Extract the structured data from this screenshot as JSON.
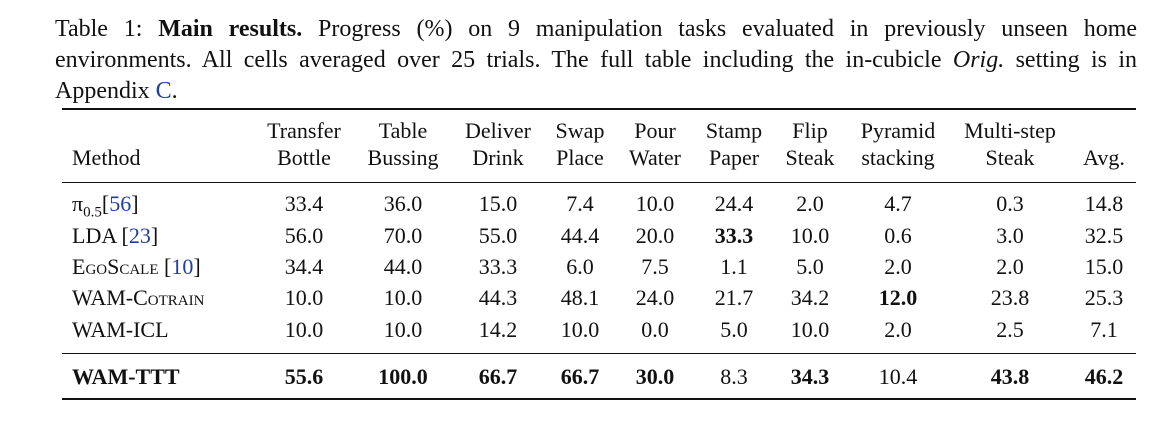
{
  "caption": {
    "label": "Table 1:",
    "bold": "Main results.",
    "text1": "Progress (%) on 9 manipulation tasks evaluated in previously unseen home environments. All cells averaged over 25 trials. The full table including the in-cubicle",
    "italic": "Orig.",
    "text2": "setting is in Appendix",
    "link": "C",
    "end": "."
  },
  "table": {
    "headers": [
      [
        "Method"
      ],
      [
        "Transfer",
        "Bottle"
      ],
      [
        "Table",
        "Bussing"
      ],
      [
        "Deliver",
        "Drink"
      ],
      [
        "Swap",
        "Place"
      ],
      [
        "Pour",
        "Water"
      ],
      [
        "Stamp",
        "Paper"
      ],
      [
        "Flip",
        "Steak"
      ],
      [
        "Pyramid",
        "stacking"
      ],
      [
        "Multi-step",
        "Steak"
      ],
      [
        "Avg."
      ]
    ],
    "rows": [
      {
        "method": {
          "name": "π",
          "sub": "0.5",
          "cite": [
            "[",
            "56",
            "]"
          ]
        },
        "values": [
          "33.4",
          "36.0",
          "15.0",
          "7.4",
          "10.0",
          "24.4",
          "2.0",
          "4.7",
          "0.3",
          "14.8"
        ],
        "bold": []
      },
      {
        "method": {
          "name": "LDA",
          "cite": [
            "[",
            "23",
            "]"
          ]
        },
        "values": [
          "56.0",
          "70.0",
          "55.0",
          "44.4",
          "20.0",
          "33.3",
          "10.0",
          "0.6",
          "3.0",
          "32.5"
        ],
        "bold": [
          5
        ]
      },
      {
        "method": {
          "name": "EgoScale",
          "smallcaps": true,
          "cite": [
            "[",
            "10",
            "]"
          ]
        },
        "values": [
          "34.4",
          "44.0",
          "33.3",
          "6.0",
          "7.5",
          "1.1",
          "5.0",
          "2.0",
          "2.0",
          "15.0"
        ],
        "bold": []
      },
      {
        "method": {
          "name": "WAM-Cotrain",
          "smallcaps": true
        },
        "values": [
          "10.0",
          "10.0",
          "44.3",
          "48.1",
          "24.0",
          "21.7",
          "34.2",
          "12.0",
          "23.8",
          "25.3"
        ],
        "bold": [
          7
        ]
      },
      {
        "method": {
          "name": "WAM-ICL"
        },
        "values": [
          "10.0",
          "10.0",
          "14.2",
          "10.0",
          "0.0",
          "5.0",
          "10.0",
          "2.0",
          "2.5",
          "7.1"
        ],
        "bold": []
      },
      {
        "method": {
          "name": "WAM-TTT",
          "bold": true
        },
        "values": [
          "55.6",
          "100.0",
          "66.7",
          "66.7",
          "30.0",
          "8.3",
          "34.3",
          "10.4",
          "43.8",
          "46.2"
        ],
        "bold": [
          0,
          1,
          2,
          3,
          4,
          6,
          8,
          9
        ]
      }
    ]
  }
}
